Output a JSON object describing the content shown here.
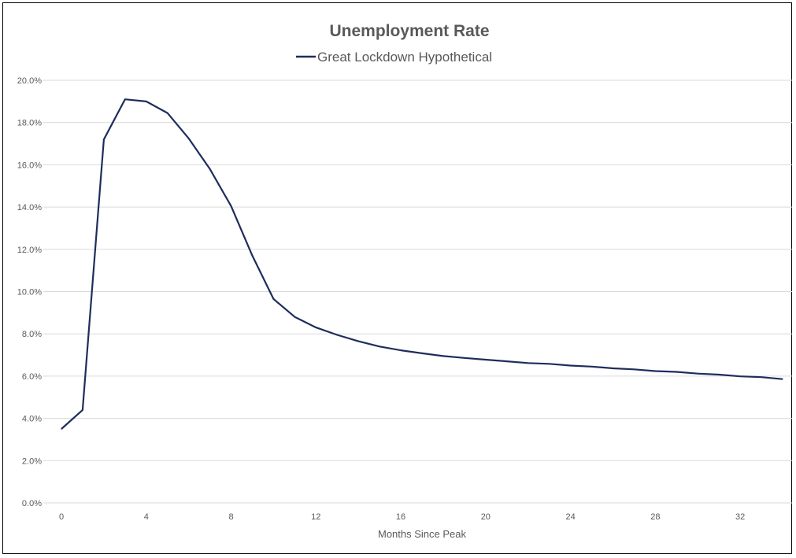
{
  "chart_data": {
    "type": "line",
    "title": "Unemployment Rate",
    "xlabel": "Months Since Peak",
    "ylabel": "",
    "xlim": [
      0,
      34
    ],
    "ylim": [
      0,
      20
    ],
    "x_ticks": [
      "0",
      "4",
      "8",
      "12",
      "16",
      "20",
      "24",
      "28",
      "32"
    ],
    "y_ticks": [
      "0.0%",
      "2.0%",
      "4.0%",
      "6.0%",
      "8.0%",
      "10.0%",
      "12.0%",
      "14.0%",
      "16.0%",
      "18.0%",
      "20.0%"
    ],
    "grid": true,
    "legend_position": "top",
    "colors": {
      "series": "#1f2d5c",
      "grid": "#d9d9d9",
      "text": "#595959"
    },
    "series": [
      {
        "name": "Great Lockdown Hypothetical",
        "x": [
          0,
          1,
          2,
          3,
          4,
          5,
          6,
          7,
          8,
          9,
          10,
          11,
          12,
          13,
          14,
          15,
          16,
          17,
          18,
          19,
          20,
          21,
          22,
          23,
          24,
          25,
          26,
          27,
          28,
          29,
          30,
          31,
          32,
          33,
          34
        ],
        "values": [
          3.5,
          4.4,
          17.2,
          19.1,
          19.0,
          18.45,
          17.25,
          15.8,
          14.05,
          11.7,
          9.65,
          8.8,
          8.3,
          7.95,
          7.65,
          7.4,
          7.22,
          7.08,
          6.95,
          6.86,
          6.78,
          6.7,
          6.62,
          6.58,
          6.5,
          6.45,
          6.37,
          6.32,
          6.24,
          6.2,
          6.12,
          6.07,
          5.99,
          5.95,
          5.86
        ]
      }
    ]
  }
}
